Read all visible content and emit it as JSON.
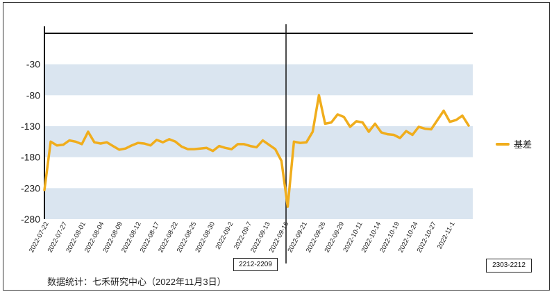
{
  "chart_data": {
    "type": "line",
    "title": "",
    "xlabel": "",
    "ylabel": "",
    "ylim": [
      -280,
      20
    ],
    "y_ticks": [
      -30,
      -80,
      -130,
      -180,
      -230,
      -280
    ],
    "x_tick_labels": [
      "2022-07-22",
      "2022-07-27",
      "2022-08-01",
      "2022-08-04",
      "2022-08-09",
      "2022-08-12",
      "2022-08-17",
      "2022-08-22",
      "2022-08-25",
      "2022-08-30",
      "2022-09-2",
      "2022-09-7",
      "2022-09-13",
      "2022-09-16",
      "2022-09-21",
      "2022-09-26",
      "2022-09-29",
      "2022-10-11",
      "2022-10-14",
      "2022-10-19",
      "2022-10-24",
      "2022-10-27",
      "2022-11-1"
    ],
    "series": [
      {
        "name": "基差",
        "color": "#f0ad1c",
        "values": [
          -233,
          -155,
          -161,
          -160,
          -153,
          -155,
          -159,
          -139,
          -156,
          -158,
          -156,
          -162,
          -168,
          -166,
          -161,
          -157,
          -158,
          -161,
          -152,
          -156,
          -151,
          -155,
          -163,
          -167,
          -167,
          -166,
          -165,
          -170,
          -162,
          -165,
          -167,
          -159,
          -159,
          -162,
          -164,
          -153,
          -160,
          -167,
          -186,
          -260,
          -155,
          -157,
          -156,
          -139,
          -80,
          -126,
          -124,
          -111,
          -115,
          -131,
          -122,
          -124,
          -139,
          -126,
          -140,
          -143,
          -144,
          -149,
          -138,
          -144,
          -131,
          -134,
          -135,
          -120,
          -105,
          -123,
          -120,
          -113,
          -129
        ]
      }
    ]
  },
  "annotations": {
    "left_contract": "2212-2209",
    "right_contract": "2303-2212"
  },
  "source_note": "数据统计：七禾研究中心（2022年11月3日）",
  "legend": {
    "label": "基差"
  },
  "colors": {
    "band": "#dae5f0",
    "line": "#f0ad1c",
    "axis": "#111111"
  }
}
